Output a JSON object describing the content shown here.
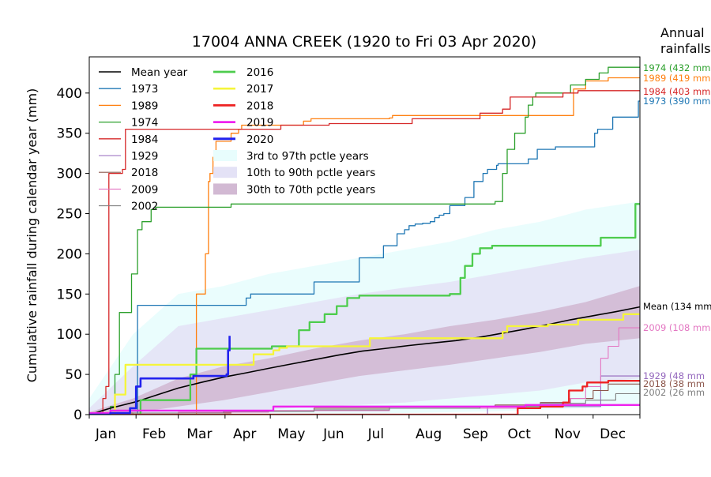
{
  "chart_data": {
    "type": "line",
    "title": "17004 ANNA CREEK  (1920 to Fri 03 Apr 2020)",
    "ylabel": "Cumulative rainfall during calendar year (mm)",
    "xlabel": "",
    "ylim": [
      0,
      445
    ],
    "yticks": [
      0,
      50,
      100,
      150,
      200,
      250,
      300,
      350,
      400
    ],
    "xlim": [
      1,
      366
    ],
    "month_ticks": [
      {
        "label": "Jan",
        "day": 12
      },
      {
        "label": "Feb",
        "day": 44
      },
      {
        "label": "Mar",
        "day": 74
      },
      {
        "label": "Apr",
        "day": 104
      },
      {
        "label": "May",
        "day": 135
      },
      {
        "label": "Jun",
        "day": 163
      },
      {
        "label": "Jul",
        "day": 191
      },
      {
        "label": "Aug",
        "day": 226
      },
      {
        "label": "Sep",
        "day": 257
      },
      {
        "label": "Oct",
        "day": 286
      },
      {
        "label": "Nov",
        "day": 318
      },
      {
        "label": "Dec",
        "day": 348
      }
    ],
    "tick_days": [
      1,
      32,
      60,
      91,
      121,
      152,
      182,
      213,
      244,
      274,
      305,
      335,
      366
    ],
    "annual_header": [
      "Annual",
      "rainfalls"
    ],
    "grid": false,
    "legend_position": "top-left",
    "bands": [
      {
        "name": "3rd to 97th pctle years",
        "color": "#e8fdfd",
        "opacity": 0.9,
        "x": [
          1,
          30,
          60,
          90,
          120,
          150,
          180,
          210,
          240,
          270,
          300,
          330,
          366
        ],
        "lower": [
          0,
          0,
          0,
          0,
          0,
          0,
          1,
          2,
          3,
          4,
          6,
          8,
          12
        ],
        "upper": [
          20,
          100,
          150,
          160,
          175,
          185,
          195,
          205,
          215,
          230,
          240,
          255,
          265
        ]
      },
      {
        "name": "10th to 90th pctle years",
        "color": "#e4e2f6",
        "opacity": 0.85,
        "x": [
          1,
          30,
          60,
          90,
          120,
          150,
          180,
          210,
          240,
          270,
          300,
          330,
          366
        ],
        "lower": [
          0,
          0,
          1,
          3,
          6,
          10,
          12,
          15,
          20,
          25,
          30,
          40,
          45
        ],
        "upper": [
          8,
          60,
          110,
          120,
          130,
          140,
          150,
          158,
          165,
          175,
          185,
          195,
          205
        ]
      },
      {
        "name": "30th to 70th pctle years",
        "color": "#d2b9d3",
        "opacity": 0.9,
        "x": [
          1,
          30,
          60,
          90,
          120,
          150,
          180,
          210,
          240,
          270,
          300,
          330,
          366
        ],
        "lower": [
          0,
          2,
          10,
          18,
          28,
          38,
          48,
          55,
          62,
          70,
          78,
          88,
          95
        ],
        "upper": [
          3,
          20,
          45,
          60,
          70,
          82,
          92,
          100,
          110,
          118,
          128,
          140,
          160
        ]
      }
    ],
    "series": [
      {
        "name": "Mean year",
        "color": "#000000",
        "width": 1.6,
        "step": false,
        "x": [
          1,
          15,
          32,
          45,
          60,
          75,
          91,
          105,
          121,
          135,
          152,
          166,
          182,
          196,
          213,
          228,
          244,
          259,
          274,
          289,
          305,
          320,
          335,
          350,
          366
        ],
        "y": [
          0,
          8,
          16,
          24,
          33,
          40,
          47,
          52,
          58,
          63,
          69,
          74,
          79,
          82,
          86,
          89,
          92,
          96,
          101,
          106,
          112,
          118,
          123,
          128,
          134
        ]
      },
      {
        "name": "1973",
        "color": "#1f77b4",
        "width": 1.3,
        "step": true,
        "x": [
          1,
          32,
          33,
          98,
          105,
          108,
          142,
          150,
          172,
          180,
          193,
          196,
          200,
          205,
          210,
          213,
          217,
          222,
          227,
          230,
          233,
          236,
          240,
          250,
          256,
          262,
          265,
          271,
          272,
          286,
          292,
          298,
          310,
          336,
          338,
          348,
          361,
          365,
          366
        ],
        "y": [
          0,
          0,
          136,
          136,
          145,
          150,
          150,
          165,
          165,
          195,
          195,
          210,
          210,
          225,
          230,
          235,
          237,
          238,
          240,
          245,
          248,
          250,
          260,
          270,
          290,
          300,
          305,
          310,
          312,
          312,
          318,
          330,
          333,
          350,
          355,
          370,
          370,
          390,
          390
        ]
      },
      {
        "name": "1989",
        "color": "#ff7f0e",
        "width": 1.3,
        "step": true,
        "x": [
          1,
          50,
          72,
          78,
          80,
          81,
          83,
          85,
          95,
          100,
          102,
          136,
          143,
          148,
          150,
          180,
          200,
          202,
          205,
          235,
          320,
          322,
          330,
          345,
          366
        ],
        "y": [
          0,
          0,
          150,
          200,
          290,
          300,
          320,
          340,
          350,
          355,
          360,
          360,
          365,
          368,
          368,
          368,
          369,
          372,
          372,
          372,
          372,
          405,
          415,
          419,
          419
        ]
      },
      {
        "name": "1974",
        "color": "#2ca02c",
        "width": 1.3,
        "step": true,
        "x": [
          1,
          15,
          18,
          21,
          28,
          29,
          33,
          36,
          42,
          45,
          55,
          95,
          100,
          120,
          200,
          240,
          265,
          270,
          275,
          278,
          283,
          290,
          292,
          295,
          297,
          300,
          320,
          330,
          339,
          345,
          366
        ],
        "y": [
          0,
          10,
          50,
          127,
          127,
          175,
          230,
          240,
          255,
          258,
          258,
          262,
          262,
          262,
          262,
          262,
          262,
          265,
          300,
          330,
          350,
          370,
          385,
          395,
          400,
          400,
          410,
          417,
          425,
          432,
          432
        ]
      },
      {
        "name": "1984",
        "color": "#d62728",
        "width": 1.3,
        "step": true,
        "x": [
          1,
          10,
          12,
          14,
          23,
          25,
          33,
          95,
          100,
          117,
          128,
          152,
          160,
          215,
          260,
          275,
          280,
          300,
          315,
          325,
          366
        ],
        "y": [
          0,
          20,
          35,
          300,
          305,
          355,
          355,
          355,
          355,
          355,
          360,
          360,
          362,
          368,
          375,
          380,
          395,
          395,
          400,
          403,
          403
        ]
      },
      {
        "name": "1929",
        "color": "#9467bd",
        "width": 1.1,
        "step": true,
        "x": [
          1,
          210,
          261,
          265,
          338,
          340,
          366
        ],
        "y": [
          0,
          0,
          0,
          10,
          10,
          48,
          48
        ]
      },
      {
        "name": "2018",
        "color": "#8c564b",
        "width": 1.1,
        "step": true,
        "x": [
          1,
          20,
          95,
          150,
          200,
          270,
          300,
          320,
          335,
          345,
          366
        ],
        "y": [
          0,
          2,
          5,
          8,
          10,
          12,
          15,
          20,
          30,
          38,
          38
        ]
      },
      {
        "name": "2009",
        "color": "#e377c2",
        "width": 1.1,
        "step": true,
        "x": [
          1,
          60,
          120,
          200,
          300,
          320,
          330,
          340,
          345,
          352,
          366
        ],
        "y": [
          0,
          3,
          5,
          8,
          12,
          20,
          35,
          70,
          85,
          108,
          108
        ]
      },
      {
        "name": "2002",
        "color": "#7f7f7f",
        "width": 1.1,
        "step": true,
        "x": [
          1,
          30,
          90,
          150,
          200,
          260,
          300,
          330,
          350,
          366
        ],
        "y": [
          0,
          2,
          4,
          6,
          8,
          10,
          14,
          18,
          26,
          26
        ]
      },
      {
        "name": "2016",
        "color": "#4dcc4d",
        "width": 2.3,
        "step": true,
        "x": [
          1,
          35,
          67,
          68,
          72,
          92,
          103,
          121,
          122,
          140,
          147,
          157,
          165,
          172,
          180,
          187,
          200,
          230,
          240,
          247,
          250,
          255,
          260,
          268,
          330,
          340,
          350,
          363,
          366
        ],
        "y": [
          0,
          18,
          18,
          50,
          82,
          82,
          82,
          82,
          85,
          105,
          115,
          125,
          135,
          145,
          148,
          148,
          148,
          148,
          150,
          170,
          185,
          200,
          207,
          210,
          210,
          220,
          220,
          262,
          262
        ]
      },
      {
        "name": "2017",
        "color": "#f5f53a",
        "width": 2.3,
        "step": true,
        "x": [
          1,
          15,
          18,
          25,
          107,
          110,
          123,
          127,
          132,
          160,
          180,
          187,
          260,
          271,
          275,
          278,
          305,
          325,
          340,
          355,
          366
        ],
        "y": [
          2,
          2,
          25,
          62,
          62,
          75,
          80,
          83,
          85,
          85,
          85,
          95,
          95,
          95,
          103,
          110,
          112,
          118,
          118,
          125,
          125
        ]
      },
      {
        "name": "2018",
        "color": "#ee2222",
        "width": 2.3,
        "step": true,
        "x": [
          1,
          145,
          285,
          300,
          315,
          319,
          328,
          331,
          345,
          366
        ],
        "y": [
          0,
          0,
          8,
          10,
          15,
          30,
          35,
          40,
          42,
          42
        ]
      },
      {
        "name": "2019",
        "color": "#ee22ee",
        "width": 2.3,
        "step": true,
        "x": [
          1,
          15,
          120,
          123,
          240,
          290,
          310,
          366
        ],
        "y": [
          2,
          5,
          5,
          10,
          10,
          12,
          12,
          12
        ]
      },
      {
        "name": "2020",
        "color": "#2222ee",
        "width": 2.6,
        "step": true,
        "x": [
          1,
          15,
          28,
          32,
          35,
          63,
          70,
          92,
          93,
          94
        ],
        "y": [
          0,
          2,
          8,
          35,
          45,
          45,
          48,
          50,
          80,
          98
        ]
      }
    ],
    "right_labels": [
      {
        "text": "1974 (432 mm",
        "value": 432,
        "color": "#2ca02c"
      },
      {
        "text": "1989 (419 mm",
        "value": 419,
        "color": "#ff7f0e"
      },
      {
        "text": "1984 (403 mm",
        "value": 403,
        "color": "#d62728"
      },
      {
        "text": "1973 (390 mm",
        "value": 390,
        "color": "#1f77b4"
      },
      {
        "text": "Mean (134 mm",
        "value": 134,
        "color": "#000000"
      },
      {
        "text": "2009 (108 mm",
        "value": 108,
        "color": "#e377c2"
      },
      {
        "text": "1929 (48 mm",
        "value": 48,
        "color": "#9467bd"
      },
      {
        "text": "2018 (38 mm",
        "value": 38,
        "color": "#8c564b"
      },
      {
        "text": "2002 (26 mm",
        "value": 26,
        "color": "#7f7f7f"
      }
    ]
  }
}
